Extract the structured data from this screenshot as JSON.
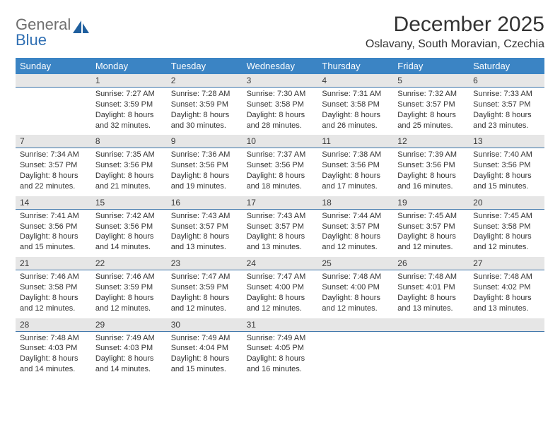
{
  "logo": {
    "text1": "General",
    "text2": "Blue"
  },
  "title": "December 2025",
  "location": "Oslavany, South Moravian, Czechia",
  "colors": {
    "header_bg": "#3b84c4",
    "header_fg": "#ffffff",
    "daynum_bg": "#e6e6e6",
    "daynum_border": "#3b73a8",
    "text": "#333333",
    "logo_gray": "#6e6e6e",
    "logo_blue": "#2f6fb3",
    "logo_icon": "#1f5f9e"
  },
  "day_names": [
    "Sunday",
    "Monday",
    "Tuesday",
    "Wednesday",
    "Thursday",
    "Friday",
    "Saturday"
  ],
  "weeks": [
    [
      {
        "num": "",
        "sunrise": "",
        "sunset": "",
        "daylight": ""
      },
      {
        "num": "1",
        "sunrise": "Sunrise: 7:27 AM",
        "sunset": "Sunset: 3:59 PM",
        "daylight": "Daylight: 8 hours and 32 minutes."
      },
      {
        "num": "2",
        "sunrise": "Sunrise: 7:28 AM",
        "sunset": "Sunset: 3:59 PM",
        "daylight": "Daylight: 8 hours and 30 minutes."
      },
      {
        "num": "3",
        "sunrise": "Sunrise: 7:30 AM",
        "sunset": "Sunset: 3:58 PM",
        "daylight": "Daylight: 8 hours and 28 minutes."
      },
      {
        "num": "4",
        "sunrise": "Sunrise: 7:31 AM",
        "sunset": "Sunset: 3:58 PM",
        "daylight": "Daylight: 8 hours and 26 minutes."
      },
      {
        "num": "5",
        "sunrise": "Sunrise: 7:32 AM",
        "sunset": "Sunset: 3:57 PM",
        "daylight": "Daylight: 8 hours and 25 minutes."
      },
      {
        "num": "6",
        "sunrise": "Sunrise: 7:33 AM",
        "sunset": "Sunset: 3:57 PM",
        "daylight": "Daylight: 8 hours and 23 minutes."
      }
    ],
    [
      {
        "num": "7",
        "sunrise": "Sunrise: 7:34 AM",
        "sunset": "Sunset: 3:57 PM",
        "daylight": "Daylight: 8 hours and 22 minutes."
      },
      {
        "num": "8",
        "sunrise": "Sunrise: 7:35 AM",
        "sunset": "Sunset: 3:56 PM",
        "daylight": "Daylight: 8 hours and 21 minutes."
      },
      {
        "num": "9",
        "sunrise": "Sunrise: 7:36 AM",
        "sunset": "Sunset: 3:56 PM",
        "daylight": "Daylight: 8 hours and 19 minutes."
      },
      {
        "num": "10",
        "sunrise": "Sunrise: 7:37 AM",
        "sunset": "Sunset: 3:56 PM",
        "daylight": "Daylight: 8 hours and 18 minutes."
      },
      {
        "num": "11",
        "sunrise": "Sunrise: 7:38 AM",
        "sunset": "Sunset: 3:56 PM",
        "daylight": "Daylight: 8 hours and 17 minutes."
      },
      {
        "num": "12",
        "sunrise": "Sunrise: 7:39 AM",
        "sunset": "Sunset: 3:56 PM",
        "daylight": "Daylight: 8 hours and 16 minutes."
      },
      {
        "num": "13",
        "sunrise": "Sunrise: 7:40 AM",
        "sunset": "Sunset: 3:56 PM",
        "daylight": "Daylight: 8 hours and 15 minutes."
      }
    ],
    [
      {
        "num": "14",
        "sunrise": "Sunrise: 7:41 AM",
        "sunset": "Sunset: 3:56 PM",
        "daylight": "Daylight: 8 hours and 15 minutes."
      },
      {
        "num": "15",
        "sunrise": "Sunrise: 7:42 AM",
        "sunset": "Sunset: 3:56 PM",
        "daylight": "Daylight: 8 hours and 14 minutes."
      },
      {
        "num": "16",
        "sunrise": "Sunrise: 7:43 AM",
        "sunset": "Sunset: 3:57 PM",
        "daylight": "Daylight: 8 hours and 13 minutes."
      },
      {
        "num": "17",
        "sunrise": "Sunrise: 7:43 AM",
        "sunset": "Sunset: 3:57 PM",
        "daylight": "Daylight: 8 hours and 13 minutes."
      },
      {
        "num": "18",
        "sunrise": "Sunrise: 7:44 AM",
        "sunset": "Sunset: 3:57 PM",
        "daylight": "Daylight: 8 hours and 12 minutes."
      },
      {
        "num": "19",
        "sunrise": "Sunrise: 7:45 AM",
        "sunset": "Sunset: 3:57 PM",
        "daylight": "Daylight: 8 hours and 12 minutes."
      },
      {
        "num": "20",
        "sunrise": "Sunrise: 7:45 AM",
        "sunset": "Sunset: 3:58 PM",
        "daylight": "Daylight: 8 hours and 12 minutes."
      }
    ],
    [
      {
        "num": "21",
        "sunrise": "Sunrise: 7:46 AM",
        "sunset": "Sunset: 3:58 PM",
        "daylight": "Daylight: 8 hours and 12 minutes."
      },
      {
        "num": "22",
        "sunrise": "Sunrise: 7:46 AM",
        "sunset": "Sunset: 3:59 PM",
        "daylight": "Daylight: 8 hours and 12 minutes."
      },
      {
        "num": "23",
        "sunrise": "Sunrise: 7:47 AM",
        "sunset": "Sunset: 3:59 PM",
        "daylight": "Daylight: 8 hours and 12 minutes."
      },
      {
        "num": "24",
        "sunrise": "Sunrise: 7:47 AM",
        "sunset": "Sunset: 4:00 PM",
        "daylight": "Daylight: 8 hours and 12 minutes."
      },
      {
        "num": "25",
        "sunrise": "Sunrise: 7:48 AM",
        "sunset": "Sunset: 4:00 PM",
        "daylight": "Daylight: 8 hours and 12 minutes."
      },
      {
        "num": "26",
        "sunrise": "Sunrise: 7:48 AM",
        "sunset": "Sunset: 4:01 PM",
        "daylight": "Daylight: 8 hours and 13 minutes."
      },
      {
        "num": "27",
        "sunrise": "Sunrise: 7:48 AM",
        "sunset": "Sunset: 4:02 PM",
        "daylight": "Daylight: 8 hours and 13 minutes."
      }
    ],
    [
      {
        "num": "28",
        "sunrise": "Sunrise: 7:48 AM",
        "sunset": "Sunset: 4:03 PM",
        "daylight": "Daylight: 8 hours and 14 minutes."
      },
      {
        "num": "29",
        "sunrise": "Sunrise: 7:49 AM",
        "sunset": "Sunset: 4:03 PM",
        "daylight": "Daylight: 8 hours and 14 minutes."
      },
      {
        "num": "30",
        "sunrise": "Sunrise: 7:49 AM",
        "sunset": "Sunset: 4:04 PM",
        "daylight": "Daylight: 8 hours and 15 minutes."
      },
      {
        "num": "31",
        "sunrise": "Sunrise: 7:49 AM",
        "sunset": "Sunset: 4:05 PM",
        "daylight": "Daylight: 8 hours and 16 minutes."
      },
      {
        "num": "",
        "sunrise": "",
        "sunset": "",
        "daylight": ""
      },
      {
        "num": "",
        "sunrise": "",
        "sunset": "",
        "daylight": ""
      },
      {
        "num": "",
        "sunrise": "",
        "sunset": "",
        "daylight": ""
      }
    ]
  ]
}
